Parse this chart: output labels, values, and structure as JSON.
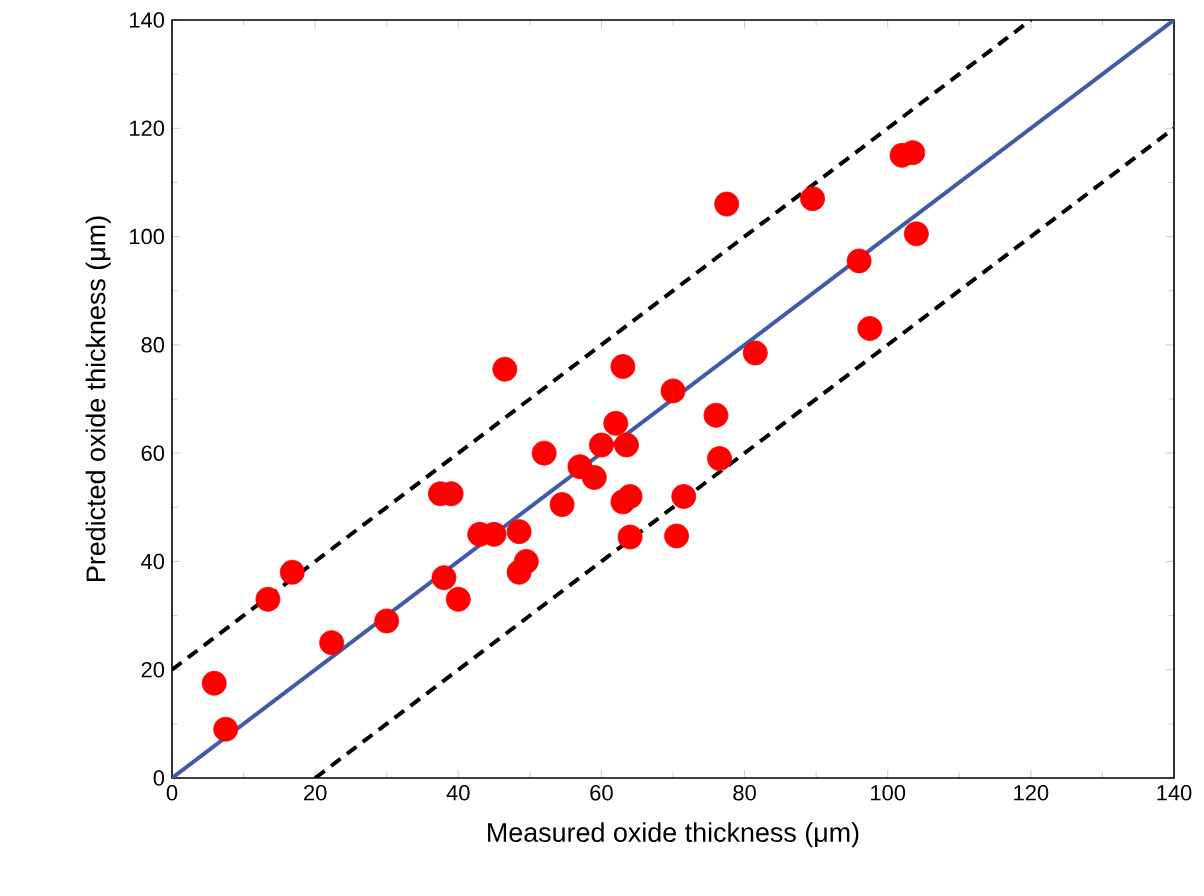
{
  "chart_data": {
    "type": "scatter",
    "xlabel": "Measured oxide thickness (μm)",
    "ylabel": "Predicted oxide thickness (μm)",
    "xlim": [
      0,
      140
    ],
    "ylim": [
      0,
      140
    ],
    "xticks": [
      0,
      20,
      40,
      60,
      80,
      100,
      120,
      140
    ],
    "yticks": [
      0,
      20,
      40,
      60,
      80,
      100,
      120,
      140
    ],
    "series": [
      {
        "color": "#ff0000",
        "marker": "circle",
        "x": [
          5.9,
          7.5,
          13.4,
          16.8,
          22.3,
          30,
          37.5,
          39,
          38,
          40,
          43,
          45,
          46.5,
          48.5,
          48.5,
          49.5,
          52,
          54.5,
          57,
          59,
          60,
          62,
          63,
          63,
          63.5,
          64,
          64,
          70,
          70.5,
          71.5,
          76,
          76.5,
          77.5,
          81.5,
          89.5,
          96,
          97.5,
          102,
          103.5,
          104
        ],
        "values": [
          17.5,
          9,
          33,
          38,
          25,
          29,
          52.5,
          52.5,
          37,
          33,
          45,
          45,
          75.5,
          45.5,
          38,
          40,
          60,
          50.5,
          57.5,
          55.5,
          61.5,
          65.5,
          76,
          51,
          61.5,
          52,
          44.5,
          71.5,
          44.7,
          52,
          67,
          59,
          106,
          78.5,
          107,
          95.5,
          83,
          115,
          115.5,
          100.5
        ]
      },
      {
        "type": "line",
        "color": "#3f5ca8",
        "line_style": "solid",
        "marker": "none",
        "x": [
          0,
          140
        ],
        "values": [
          0,
          140
        ]
      },
      {
        "type": "line",
        "color": "#000000",
        "line_style": "dashed",
        "marker": "none",
        "x": [
          0,
          120
        ],
        "values": [
          20,
          140
        ]
      },
      {
        "type": "line",
        "color": "#000000",
        "line_style": "dashed",
        "marker": "none",
        "x": [
          20,
          140
        ],
        "values": [
          0,
          120
        ]
      }
    ]
  }
}
